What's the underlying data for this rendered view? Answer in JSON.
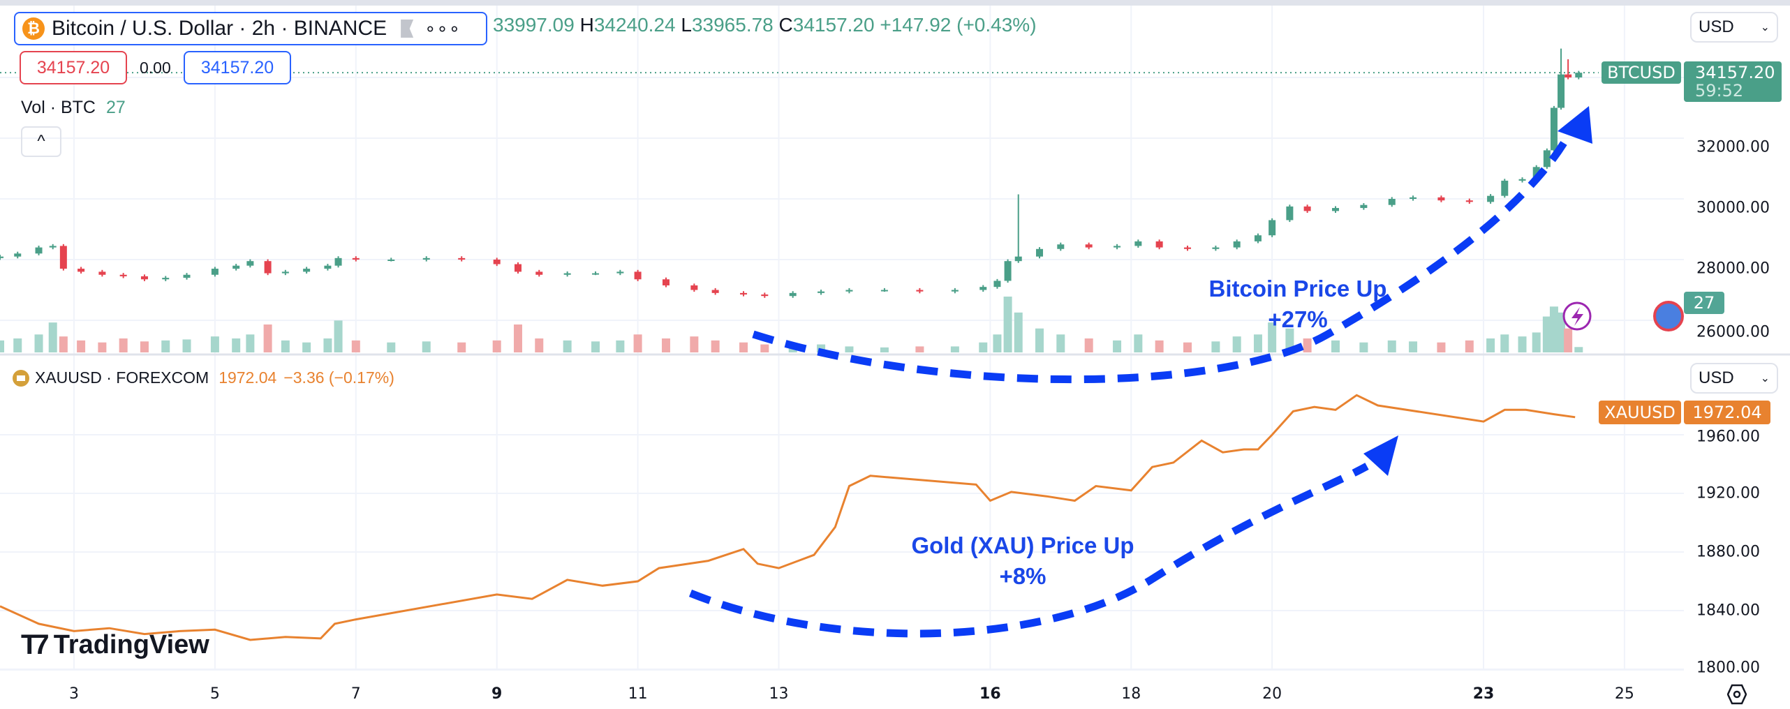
{
  "header": {
    "title": "Bitcoin / U.S. Dollar · 2h · BINANCE",
    "ohlc": {
      "o": "33997.09",
      "h_label": "H",
      "h": "34240.24",
      "l_label": "L",
      "l": "33965.78",
      "c_label": "C",
      "c": "34157.20",
      "change": "+147.92 (+0.43%)"
    },
    "sell_price": "34157.20",
    "spread": "0.00",
    "buy_price": "34157.20",
    "volume_label": "Vol · BTC",
    "volume_value": "27",
    "collapse_icon": "^"
  },
  "btc_axis": {
    "currency": "USD",
    "symbol_tag": "BTCUSD",
    "last_price": "34157.20",
    "countdown": "59:52",
    "volume_tag": "27",
    "ticks": [
      "32000.00",
      "30000.00",
      "28000.00",
      "26000.00"
    ]
  },
  "gold": {
    "legend_symbol": "XAUUSD · FOREXCOM",
    "legend_value": "1972.04",
    "legend_change": "−3.36 (−0.17%)",
    "currency": "USD",
    "symbol_tag": "XAUUSD",
    "last_price": "1972.04",
    "ticks": [
      "1960.00",
      "1920.00",
      "1880.00",
      "1840.00",
      "1800.00"
    ]
  },
  "time_axis": [
    "3",
    "5",
    "7",
    "9",
    "11",
    "13",
    "16",
    "18",
    "20",
    "23",
    "25"
  ],
  "annotations": {
    "btc_line1": "Bitcoin Price Up",
    "btc_line2": "+27%",
    "gold_line1": "Gold (XAU) Price Up",
    "gold_line2": "+8%"
  },
  "logo": "TradingView",
  "colors": {
    "up": "#4a9f88",
    "down": "#e5434f",
    "vol_up": "#a6d6cc",
    "vol_down": "#f0aaaa",
    "gold": "#e8822f",
    "annotation": "#0a3cf5",
    "legend_border": "#2962ff"
  },
  "chart_data": [
    {
      "type": "candlestick",
      "title": "Bitcoin / U.S. Dollar · 2h · BINANCE",
      "x_unit": "day of month",
      "ylim": [
        25800,
        35200
      ],
      "points": [
        [
          1.95,
          28100
        ],
        [
          2.2,
          28200
        ],
        [
          2.5,
          28400
        ],
        [
          2.7,
          28450
        ],
        [
          2.85,
          27700
        ],
        [
          3.1,
          27600
        ],
        [
          3.4,
          27500
        ],
        [
          3.7,
          27450
        ],
        [
          4,
          27350
        ],
        [
          4.3,
          27400
        ],
        [
          4.6,
          27500
        ],
        [
          5,
          27700
        ],
        [
          5.3,
          27800
        ],
        [
          5.5,
          27950
        ],
        [
          5.75,
          27550
        ],
        [
          6,
          27600
        ],
        [
          6.3,
          27700
        ],
        [
          6.6,
          27800
        ],
        [
          6.75,
          28050
        ],
        [
          7,
          28000
        ],
        [
          7.5,
          28000
        ],
        [
          8,
          28050
        ],
        [
          8.5,
          28000
        ],
        [
          9,
          27850
        ],
        [
          9.3,
          27600
        ],
        [
          9.6,
          27500
        ],
        [
          10,
          27550
        ],
        [
          10.4,
          27550
        ],
        [
          10.75,
          27600
        ],
        [
          11,
          27350
        ],
        [
          11.4,
          27150
        ],
        [
          11.8,
          27000
        ],
        [
          12.1,
          26900
        ],
        [
          12.5,
          26850
        ],
        [
          12.8,
          26800
        ],
        [
          13.2,
          26900
        ],
        [
          13.6,
          26950
        ],
        [
          14,
          27000
        ],
        [
          14.5,
          27000
        ],
        [
          15,
          26950
        ],
        [
          15.5,
          27000
        ],
        [
          15.9,
          27100
        ],
        [
          16.1,
          27300
        ],
        [
          16.25,
          27950
        ],
        [
          16.4,
          28100
        ],
        [
          16.7,
          28350
        ],
        [
          17,
          28500
        ],
        [
          17.4,
          28400
        ],
        [
          17.8,
          28450
        ],
        [
          18.1,
          28600
        ],
        [
          18.4,
          28400
        ],
        [
          18.8,
          28350
        ],
        [
          19.2,
          28400
        ],
        [
          19.5,
          28600
        ],
        [
          19.8,
          28800
        ],
        [
          20,
          29300
        ],
        [
          20.25,
          29750
        ],
        [
          20.5,
          29600
        ],
        [
          20.9,
          29700
        ],
        [
          21.3,
          29800
        ],
        [
          21.7,
          30000
        ],
        [
          22,
          30050
        ],
        [
          22.4,
          29950
        ],
        [
          22.8,
          29900
        ],
        [
          23.1,
          30100
        ],
        [
          23.3,
          30600
        ],
        [
          23.55,
          30650
        ],
        [
          23.75,
          31050
        ],
        [
          23.9,
          31600
        ],
        [
          24.0,
          33000
        ],
        [
          24.1,
          34100
        ],
        [
          24.2,
          34000
        ],
        [
          24.35,
          34157.2
        ]
      ],
      "wick_highs": {
        "16.4": 30150,
        "24.1": 34950,
        "24.2": 34600
      },
      "volumes": [
        60,
        70,
        90,
        150,
        80,
        60,
        50,
        70,
        55,
        60,
        65,
        80,
        70,
        90,
        140,
        60,
        50,
        70,
        160,
        60,
        50,
        55,
        50,
        60,
        140,
        70,
        60,
        55,
        60,
        90,
        70,
        80,
        60,
        50,
        40,
        35,
        40,
        30,
        25,
        30,
        30,
        50,
        90,
        280,
        200,
        120,
        90,
        70,
        60,
        90,
        60,
        50,
        55,
        80,
        90,
        150,
        120,
        70,
        60,
        50,
        60,
        55,
        50,
        60,
        70,
        90,
        80,
        100,
        180,
        230,
        200,
        120,
        27
      ]
    },
    {
      "type": "line",
      "title": "XAUUSD · FOREXCOM",
      "x_unit": "day of month",
      "ylim": [
        1795,
        1990
      ],
      "points": [
        [
          1.95,
          1843
        ],
        [
          2.5,
          1831
        ],
        [
          3,
          1826
        ],
        [
          3.5,
          1828
        ],
        [
          4,
          1824
        ],
        [
          4.5,
          1826
        ],
        [
          5,
          1827
        ],
        [
          5.5,
          1820
        ],
        [
          6,
          1822
        ],
        [
          6.5,
          1821
        ],
        [
          6.7,
          1831
        ],
        [
          7,
          1834
        ],
        [
          9,
          1851
        ],
        [
          9.5,
          1848
        ],
        [
          10,
          1861
        ],
        [
          10.5,
          1857
        ],
        [
          11,
          1860
        ],
        [
          11.3,
          1869
        ],
        [
          12,
          1874
        ],
        [
          12.5,
          1882
        ],
        [
          12.7,
          1872
        ],
        [
          13,
          1869
        ],
        [
          13.5,
          1878
        ],
        [
          13.8,
          1897
        ],
        [
          14,
          1925
        ],
        [
          14.3,
          1932
        ],
        [
          15.8,
          1926
        ],
        [
          16,
          1915
        ],
        [
          16.3,
          1921
        ],
        [
          16.8,
          1918
        ],
        [
          17.2,
          1915
        ],
        [
          17.5,
          1925
        ],
        [
          18,
          1922
        ],
        [
          18.3,
          1938
        ],
        [
          18.6,
          1941
        ],
        [
          19,
          1956
        ],
        [
          19.3,
          1948
        ],
        [
          19.6,
          1950
        ],
        [
          19.8,
          1950
        ],
        [
          20,
          1960
        ],
        [
          20.3,
          1976
        ],
        [
          20.6,
          1979
        ],
        [
          20.9,
          1977
        ],
        [
          21.2,
          1987
        ],
        [
          21.5,
          1980
        ],
        [
          23,
          1969
        ],
        [
          23.3,
          1977
        ],
        [
          23.6,
          1977
        ],
        [
          24,
          1974
        ],
        [
          24.3,
          1972
        ]
      ]
    }
  ]
}
